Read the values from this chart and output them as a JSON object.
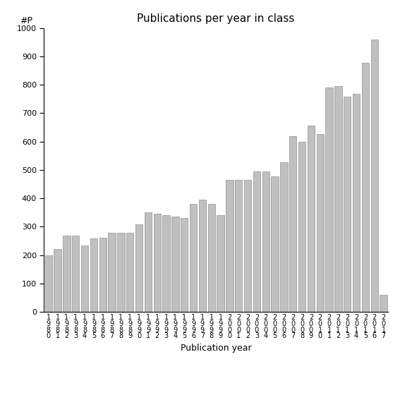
{
  "title": "Publications per year in class",
  "xlabel": "Publication year",
  "ylabel": "#P",
  "years": [
    "1\n9\n8\n0",
    "1\n9\n8\n1",
    "1\n9\n8\n2",
    "1\n9\n8\n3",
    "1\n9\n8\n4",
    "1\n9\n8\n5",
    "1\n9\n8\n6",
    "1\n9\n8\n7",
    "1\n9\n8\n8",
    "1\n9\n8\n9",
    "1\n9\n9\n0",
    "1\n9\n9\n1",
    "1\n9\n9\n2",
    "1\n9\n9\n3",
    "1\n9\n9\n4",
    "1\n9\n9\n5",
    "1\n9\n9\n6",
    "1\n9\n9\n7",
    "1\n9\n9\n8",
    "1\n9\n9\n9",
    "2\n0\n0\n0",
    "2\n0\n0\n1",
    "2\n0\n0\n2",
    "2\n0\n0\n3",
    "2\n0\n0\n4",
    "2\n0\n0\n5",
    "2\n0\n0\n6",
    "2\n0\n0\n7",
    "2\n0\n0\n8",
    "2\n0\n0\n9",
    "2\n0\n1\n0",
    "2\n0\n1\n1",
    "2\n0\n1\n2",
    "2\n0\n1\n3",
    "2\n0\n1\n4",
    "2\n0\n1\n5",
    "2\n0\n1\n6",
    "2\n0\n1\n7"
  ],
  "values": [
    200,
    222,
    270,
    268,
    235,
    260,
    262,
    278,
    280,
    280,
    308,
    350,
    347,
    342,
    337,
    332,
    380,
    395,
    380,
    340,
    466,
    465,
    466,
    496,
    495,
    478,
    527,
    620,
    600,
    656,
    627,
    790,
    795,
    759,
    769,
    877,
    960,
    60
  ],
  "bar_color": "#c0c0c0",
  "bar_edgecolor": "#909090",
  "background_color": "#ffffff",
  "ylim": [
    0,
    1000
  ],
  "yticks": [
    0,
    100,
    200,
    300,
    400,
    500,
    600,
    700,
    800,
    900,
    1000
  ],
  "title_fontsize": 11,
  "xlabel_fontsize": 9,
  "ylabel_fontsize": 9,
  "tick_fontsize": 8,
  "xtick_fontsize": 7
}
